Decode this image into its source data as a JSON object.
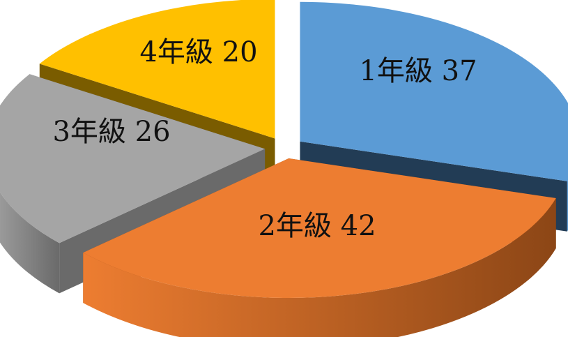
{
  "chart_data": {
    "type": "pie",
    "style": "3d-exploded",
    "start_angle_deg": 90,
    "direction": "clockwise",
    "slices": [
      {
        "label": "1年級",
        "value": 37,
        "text": "1年級 37",
        "color": "#5B9BD5",
        "side_color": "#223C55"
      },
      {
        "label": "2年級",
        "value": 42,
        "text": "2年級 42",
        "color": "#ED7D31",
        "side_color": "#8C4616"
      },
      {
        "label": "3年級",
        "value": 26,
        "text": "3年級 26",
        "color": "#A5A5A5",
        "side_color": "#6A6A6A"
      },
      {
        "label": "4年級",
        "value": 20,
        "text": "4年級 20",
        "color": "#FFC000",
        "side_color": "#7A5C00"
      }
    ]
  }
}
